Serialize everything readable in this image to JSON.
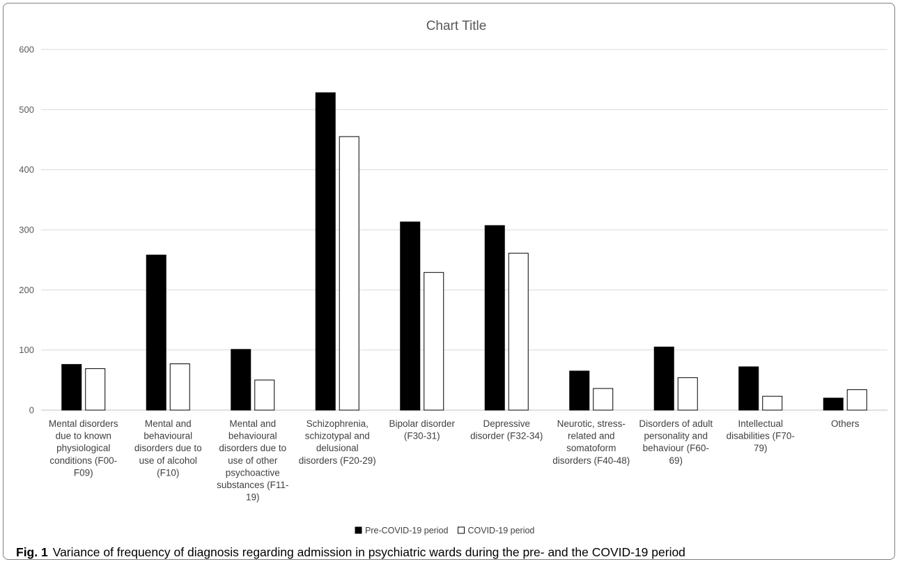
{
  "chart_data": {
    "type": "bar",
    "title": "Chart Title",
    "xlabel": "",
    "ylabel": "",
    "ylim": [
      0,
      600
    ],
    "yticks": [
      0,
      100,
      200,
      300,
      400,
      500,
      600
    ],
    "grid": true,
    "legend_position": "bottom",
    "categories": [
      "Mental disorders due to known physiological conditions (F00-F09)",
      "Mental and behavioural disorders due to use of alcohol (F10)",
      "Mental and behavioural disorders due to use of other psychoactive substances (F11-19)",
      "Schizophrenia, schizotypal and delusional disorders (F20-29)",
      "Bipolar disorder (F30-31)",
      "Depressive disorder (F32-34)",
      "Neurotic, stress-related and somatoform disorders (F40-48)",
      "Disorders of adult personality and behaviour (F60-69)",
      "Intellectual disabilities (F70-79)",
      "Others"
    ],
    "category_lines": [
      [
        "Mental disorders",
        "due to known",
        "physiological",
        "conditions (F00-",
        "F09)"
      ],
      [
        "Mental and",
        "behavioural",
        "disorders due to",
        "use of alcohol",
        "(F10)"
      ],
      [
        "Mental and",
        "behavioural",
        "disorders due to",
        "use of other",
        "psychoactive",
        "substances (F11-",
        "19)"
      ],
      [
        "Schizophrenia,",
        "schizotypal and",
        "delusional",
        "disorders (F20-29)"
      ],
      [
        "Bipolar disorder",
        "(F30-31)"
      ],
      [
        "Depressive",
        "disorder (F32-34)"
      ],
      [
        "Neurotic, stress-",
        "related and",
        "somatoform",
        "disorders (F40-48)"
      ],
      [
        "Disorders of adult",
        "personality and",
        "behaviour (F60-",
        "69)"
      ],
      [
        "Intellectual",
        "disabilities (F70-",
        "79)"
      ],
      [
        "Others"
      ]
    ],
    "series": [
      {
        "name": "Pre-COVID-19 period",
        "fill": "#000000",
        "stroke": "#000000",
        "values": [
          76,
          258,
          101,
          528,
          313,
          307,
          65,
          105,
          72,
          20
        ]
      },
      {
        "name": "COVID-19 period",
        "fill": "#ffffff",
        "stroke": "#000000",
        "values": [
          69,
          77,
          50,
          455,
          229,
          261,
          36,
          54,
          23,
          34
        ]
      }
    ]
  },
  "caption": {
    "label": "Fig. 1",
    "text": "Variance of frequency of diagnosis regarding admission in psychiatric wards during the pre- and the COVID-19 period"
  }
}
